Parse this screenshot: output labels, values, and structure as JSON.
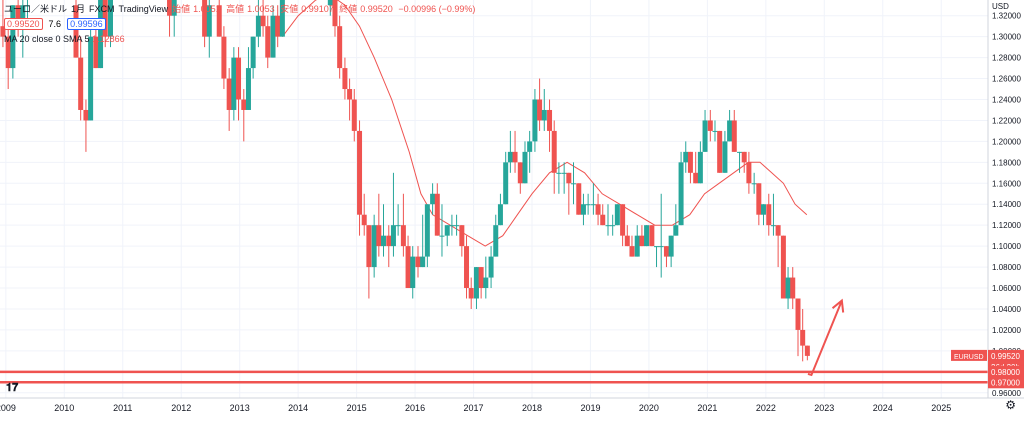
{
  "header": {
    "symbol": "ユーロ／米ドル",
    "interval": "1月",
    "exchange": "FXCM",
    "source": "TradingView",
    "open_label": "始値",
    "open": "1.0051",
    "high_label": "高値",
    "high": "1.0053",
    "low_label": "安値",
    "low": "0.99107",
    "close_label": "終値",
    "close": "0.99520",
    "change": "−0.00996 (−0.99%)",
    "bid": "0.99520",
    "spread": "7.6",
    "ask": "0.99596",
    "indicator": "MA 20 close 0 SMA 5",
    "indicator_value": "1.12866"
  },
  "axis": {
    "currency": "USD",
    "symbol_tag": "EURUSD",
    "price_tag": "0.99520",
    "countdown": "26d 20h",
    "hline_tag_1": "0.98000",
    "hline_tag_2": "0.97000"
  },
  "colors": {
    "up": "#26a69a",
    "down": "#ef5350",
    "ma": "#ef5350",
    "hline": "#ef5350",
    "arrow": "#ef5350",
    "grid": "#f0f3fa"
  },
  "chart_data": {
    "type": "candlestick",
    "ylim": [
      0.955,
      1.335
    ],
    "yticks": [
      0.96,
      0.98,
      1.0,
      1.02,
      1.04,
      1.06,
      1.08,
      1.1,
      1.12,
      1.14,
      1.16,
      1.18,
      1.2,
      1.22,
      1.24,
      1.26,
      1.28,
      1.3,
      1.32
    ],
    "xlim": [
      2008.9,
      2025.8
    ],
    "years": [
      2009,
      2010,
      2011,
      2012,
      2013,
      2014,
      2015,
      2016,
      2017,
      2018,
      2019,
      2020,
      2021,
      2022,
      2023,
      2024,
      2025
    ],
    "candles": [
      {
        "t": 2008.95,
        "o": 1.31,
        "h": 1.34,
        "l": 1.29,
        "c": 1.3
      },
      {
        "t": 2009.04,
        "o": 1.3,
        "h": 1.31,
        "l": 1.25,
        "c": 1.27
      },
      {
        "t": 2009.12,
        "o": 1.27,
        "h": 1.33,
        "l": 1.26,
        "c": 1.33
      },
      {
        "t": 2009.21,
        "o": 1.33,
        "h": 1.34,
        "l": 1.3,
        "c": 1.31
      },
      {
        "t": 2009.29,
        "o": 1.31,
        "h": 1.34,
        "l": 1.28,
        "c": 1.33
      },
      {
        "t": 2009.37,
        "o": 1.33,
        "h": 1.34,
        "l": 1.31,
        "c": 1.33
      },
      {
        "t": 2010.2,
        "o": 1.33,
        "h": 1.34,
        "l": 1.28,
        "c": 1.28
      },
      {
        "t": 2010.28,
        "o": 1.28,
        "h": 1.3,
        "l": 1.22,
        "c": 1.23
      },
      {
        "t": 2010.37,
        "o": 1.23,
        "h": 1.24,
        "l": 1.19,
        "c": 1.22
      },
      {
        "t": 2010.45,
        "o": 1.22,
        "h": 1.31,
        "l": 1.22,
        "c": 1.3
      },
      {
        "t": 2010.54,
        "o": 1.3,
        "h": 1.31,
        "l": 1.27,
        "c": 1.27
      },
      {
        "t": 2010.62,
        "o": 1.27,
        "h": 1.34,
        "l": 1.27,
        "c": 1.34
      },
      {
        "t": 2010.7,
        "o": 1.34,
        "h": 1.34,
        "l": 1.29,
        "c": 1.3
      },
      {
        "t": 2010.79,
        "o": 1.3,
        "h": 1.34,
        "l": 1.29,
        "c": 1.34
      },
      {
        "t": 2011.8,
        "o": 1.34,
        "h": 1.34,
        "l": 1.3,
        "c": 1.32
      },
      {
        "t": 2011.88,
        "o": 1.32,
        "h": 1.34,
        "l": 1.3,
        "c": 1.34
      },
      {
        "t": 2012.4,
        "o": 1.34,
        "h": 1.34,
        "l": 1.29,
        "c": 1.3
      },
      {
        "t": 2012.48,
        "o": 1.3,
        "h": 1.34,
        "l": 1.28,
        "c": 1.33
      },
      {
        "t": 2012.65,
        "o": 1.33,
        "h": 1.34,
        "l": 1.3,
        "c": 1.3
      },
      {
        "t": 2012.73,
        "o": 1.3,
        "h": 1.31,
        "l": 1.25,
        "c": 1.26
      },
      {
        "t": 2012.82,
        "o": 1.26,
        "h": 1.27,
        "l": 1.21,
        "c": 1.23
      },
      {
        "t": 2012.9,
        "o": 1.23,
        "h": 1.29,
        "l": 1.22,
        "c": 1.28
      },
      {
        "t": 2012.98,
        "o": 1.28,
        "h": 1.29,
        "l": 1.22,
        "c": 1.24
      },
      {
        "t": 2013.07,
        "o": 1.24,
        "h": 1.25,
        "l": 1.2,
        "c": 1.23
      },
      {
        "t": 2013.15,
        "o": 1.23,
        "h": 1.29,
        "l": 1.23,
        "c": 1.27
      },
      {
        "t": 2013.23,
        "o": 1.27,
        "h": 1.3,
        "l": 1.26,
        "c": 1.3
      },
      {
        "t": 2013.32,
        "o": 1.3,
        "h": 1.34,
        "l": 1.29,
        "c": 1.32
      },
      {
        "t": 2013.4,
        "o": 1.32,
        "h": 1.34,
        "l": 1.3,
        "c": 1.31
      },
      {
        "t": 2013.48,
        "o": 1.31,
        "h": 1.32,
        "l": 1.27,
        "c": 1.28
      },
      {
        "t": 2013.57,
        "o": 1.28,
        "h": 1.33,
        "l": 1.28,
        "c": 1.32
      },
      {
        "t": 2013.65,
        "o": 1.32,
        "h": 1.33,
        "l": 1.29,
        "c": 1.3
      },
      {
        "t": 2013.73,
        "o": 1.3,
        "h": 1.34,
        "l": 1.3,
        "c": 1.34
      },
      {
        "t": 2014.55,
        "o": 1.33,
        "h": 1.34,
        "l": 1.32,
        "c": 1.34
      },
      {
        "t": 2014.63,
        "o": 1.34,
        "h": 1.34,
        "l": 1.3,
        "c": 1.31
      },
      {
        "t": 2014.71,
        "o": 1.31,
        "h": 1.32,
        "l": 1.26,
        "c": 1.27
      },
      {
        "t": 2014.8,
        "o": 1.27,
        "h": 1.28,
        "l": 1.24,
        "c": 1.25
      },
      {
        "t": 2014.88,
        "o": 1.25,
        "h": 1.26,
        "l": 1.22,
        "c": 1.24
      },
      {
        "t": 2014.96,
        "o": 1.24,
        "h": 1.25,
        "l": 1.2,
        "c": 1.21
      },
      {
        "t": 2015.05,
        "o": 1.21,
        "h": 1.22,
        "l": 1.11,
        "c": 1.13
      },
      {
        "t": 2015.13,
        "o": 1.13,
        "h": 1.15,
        "l": 1.11,
        "c": 1.12
      },
      {
        "t": 2015.21,
        "o": 1.12,
        "h": 1.12,
        "l": 1.05,
        "c": 1.08
      },
      {
        "t": 2015.3,
        "o": 1.08,
        "h": 1.13,
        "l": 1.07,
        "c": 1.12
      },
      {
        "t": 2015.38,
        "o": 1.12,
        "h": 1.15,
        "l": 1.09,
        "c": 1.1
      },
      {
        "t": 2015.46,
        "o": 1.1,
        "h": 1.14,
        "l": 1.09,
        "c": 1.11
      },
      {
        "t": 2015.55,
        "o": 1.11,
        "h": 1.12,
        "l": 1.08,
        "c": 1.1
      },
      {
        "t": 2015.63,
        "o": 1.1,
        "h": 1.17,
        "l": 1.09,
        "c": 1.12
      },
      {
        "t": 2015.71,
        "o": 1.12,
        "h": 1.14,
        "l": 1.11,
        "c": 1.12
      },
      {
        "t": 2015.8,
        "o": 1.12,
        "h": 1.15,
        "l": 1.09,
        "c": 1.1
      },
      {
        "t": 2015.88,
        "o": 1.1,
        "h": 1.11,
        "l": 1.06,
        "c": 1.06
      },
      {
        "t": 2015.96,
        "o": 1.06,
        "h": 1.1,
        "l": 1.05,
        "c": 1.09
      },
      {
        "t": 2016.05,
        "o": 1.09,
        "h": 1.1,
        "l": 1.07,
        "c": 1.08
      },
      {
        "t": 2016.13,
        "o": 1.08,
        "h": 1.13,
        "l": 1.08,
        "c": 1.09
      },
      {
        "t": 2016.21,
        "o": 1.09,
        "h": 1.14,
        "l": 1.08,
        "c": 1.14
      },
      {
        "t": 2016.3,
        "o": 1.14,
        "h": 1.16,
        "l": 1.13,
        "c": 1.15
      },
      {
        "t": 2016.38,
        "o": 1.15,
        "h": 1.16,
        "l": 1.11,
        "c": 1.11
      },
      {
        "t": 2016.46,
        "o": 1.11,
        "h": 1.14,
        "l": 1.09,
        "c": 1.11
      },
      {
        "t": 2016.55,
        "o": 1.11,
        "h": 1.12,
        "l": 1.1,
        "c": 1.12
      },
      {
        "t": 2016.63,
        "o": 1.12,
        "h": 1.13,
        "l": 1.11,
        "c": 1.12
      },
      {
        "t": 2016.71,
        "o": 1.12,
        "h": 1.13,
        "l": 1.11,
        "c": 1.12
      },
      {
        "t": 2016.8,
        "o": 1.12,
        "h": 1.12,
        "l": 1.09,
        "c": 1.1
      },
      {
        "t": 2016.88,
        "o": 1.1,
        "h": 1.11,
        "l": 1.05,
        "c": 1.06
      },
      {
        "t": 2016.96,
        "o": 1.06,
        "h": 1.07,
        "l": 1.04,
        "c": 1.05
      },
      {
        "t": 2017.05,
        "o": 1.05,
        "h": 1.08,
        "l": 1.04,
        "c": 1.08
      },
      {
        "t": 2017.13,
        "o": 1.08,
        "h": 1.08,
        "l": 1.05,
        "c": 1.06
      },
      {
        "t": 2017.21,
        "o": 1.06,
        "h": 1.09,
        "l": 1.05,
        "c": 1.07
      },
      {
        "t": 2017.3,
        "o": 1.07,
        "h": 1.1,
        "l": 1.06,
        "c": 1.09
      },
      {
        "t": 2017.38,
        "o": 1.09,
        "h": 1.13,
        "l": 1.09,
        "c": 1.12
      },
      {
        "t": 2017.46,
        "o": 1.12,
        "h": 1.15,
        "l": 1.12,
        "c": 1.14
      },
      {
        "t": 2017.55,
        "o": 1.14,
        "h": 1.19,
        "l": 1.14,
        "c": 1.18
      },
      {
        "t": 2017.63,
        "o": 1.18,
        "h": 1.21,
        "l": 1.17,
        "c": 1.19
      },
      {
        "t": 2017.71,
        "o": 1.19,
        "h": 1.21,
        "l": 1.17,
        "c": 1.18
      },
      {
        "t": 2017.8,
        "o": 1.18,
        "h": 1.18,
        "l": 1.15,
        "c": 1.16
      },
      {
        "t": 2017.88,
        "o": 1.16,
        "h": 1.2,
        "l": 1.16,
        "c": 1.19
      },
      {
        "t": 2017.96,
        "o": 1.19,
        "h": 1.21,
        "l": 1.17,
        "c": 1.2
      },
      {
        "t": 2018.05,
        "o": 1.2,
        "h": 1.25,
        "l": 1.19,
        "c": 1.24
      },
      {
        "t": 2018.13,
        "o": 1.24,
        "h": 1.26,
        "l": 1.21,
        "c": 1.22
      },
      {
        "t": 2018.21,
        "o": 1.22,
        "h": 1.25,
        "l": 1.21,
        "c": 1.23
      },
      {
        "t": 2018.3,
        "o": 1.23,
        "h": 1.24,
        "l": 1.19,
        "c": 1.21
      },
      {
        "t": 2018.38,
        "o": 1.21,
        "h": 1.22,
        "l": 1.15,
        "c": 1.17
      },
      {
        "t": 2018.46,
        "o": 1.17,
        "h": 1.18,
        "l": 1.15,
        "c": 1.17
      },
      {
        "t": 2018.55,
        "o": 1.17,
        "h": 1.18,
        "l": 1.15,
        "c": 1.17
      },
      {
        "t": 2018.63,
        "o": 1.17,
        "h": 1.17,
        "l": 1.13,
        "c": 1.16
      },
      {
        "t": 2018.71,
        "o": 1.16,
        "h": 1.18,
        "l": 1.14,
        "c": 1.16
      },
      {
        "t": 2018.8,
        "o": 1.16,
        "h": 1.16,
        "l": 1.13,
        "c": 1.13
      },
      {
        "t": 2018.88,
        "o": 1.13,
        "h": 1.15,
        "l": 1.12,
        "c": 1.14
      },
      {
        "t": 2018.96,
        "o": 1.14,
        "h": 1.15,
        "l": 1.13,
        "c": 1.14
      },
      {
        "t": 2019.05,
        "o": 1.14,
        "h": 1.16,
        "l": 1.13,
        "c": 1.14
      },
      {
        "t": 2019.13,
        "o": 1.14,
        "h": 1.15,
        "l": 1.12,
        "c": 1.13
      },
      {
        "t": 2019.21,
        "o": 1.13,
        "h": 1.14,
        "l": 1.12,
        "c": 1.12
      },
      {
        "t": 2019.3,
        "o": 1.12,
        "h": 1.14,
        "l": 1.11,
        "c": 1.12
      },
      {
        "t": 2019.38,
        "o": 1.12,
        "h": 1.13,
        "l": 1.11,
        "c": 1.12
      },
      {
        "t": 2019.46,
        "o": 1.12,
        "h": 1.14,
        "l": 1.12,
        "c": 1.14
      },
      {
        "t": 2019.55,
        "o": 1.14,
        "h": 1.14,
        "l": 1.1,
        "c": 1.11
      },
      {
        "t": 2019.63,
        "o": 1.11,
        "h": 1.12,
        "l": 1.1,
        "c": 1.1
      },
      {
        "t": 2019.71,
        "o": 1.1,
        "h": 1.11,
        "l": 1.09,
        "c": 1.09
      },
      {
        "t": 2019.8,
        "o": 1.09,
        "h": 1.12,
        "l": 1.09,
        "c": 1.11
      },
      {
        "t": 2019.88,
        "o": 1.11,
        "h": 1.12,
        "l": 1.1,
        "c": 1.1
      },
      {
        "t": 2019.96,
        "o": 1.1,
        "h": 1.12,
        "l": 1.1,
        "c": 1.12
      },
      {
        "t": 2020.05,
        "o": 1.12,
        "h": 1.12,
        "l": 1.1,
        "c": 1.1
      },
      {
        "t": 2020.13,
        "o": 1.1,
        "h": 1.1,
        "l": 1.08,
        "c": 1.1
      },
      {
        "t": 2020.21,
        "o": 1.1,
        "h": 1.15,
        "l": 1.07,
        "c": 1.1
      },
      {
        "t": 2020.3,
        "o": 1.1,
        "h": 1.1,
        "l": 1.08,
        "c": 1.09
      },
      {
        "t": 2020.38,
        "o": 1.09,
        "h": 1.11,
        "l": 1.08,
        "c": 1.11
      },
      {
        "t": 2020.46,
        "o": 1.11,
        "h": 1.14,
        "l": 1.11,
        "c": 1.12
      },
      {
        "t": 2020.55,
        "o": 1.12,
        "h": 1.19,
        "l": 1.12,
        "c": 1.18
      },
      {
        "t": 2020.63,
        "o": 1.18,
        "h": 1.2,
        "l": 1.17,
        "c": 1.19
      },
      {
        "t": 2020.71,
        "o": 1.19,
        "h": 1.19,
        "l": 1.16,
        "c": 1.17
      },
      {
        "t": 2020.8,
        "o": 1.17,
        "h": 1.19,
        "l": 1.16,
        "c": 1.16
      },
      {
        "t": 2020.88,
        "o": 1.16,
        "h": 1.2,
        "l": 1.16,
        "c": 1.19
      },
      {
        "t": 2020.96,
        "o": 1.19,
        "h": 1.23,
        "l": 1.19,
        "c": 1.22
      },
      {
        "t": 2021.05,
        "o": 1.22,
        "h": 1.23,
        "l": 1.2,
        "c": 1.21
      },
      {
        "t": 2021.13,
        "o": 1.21,
        "h": 1.22,
        "l": 1.2,
        "c": 1.21
      },
      {
        "t": 2021.21,
        "o": 1.21,
        "h": 1.21,
        "l": 1.17,
        "c": 1.17
      },
      {
        "t": 2021.3,
        "o": 1.17,
        "h": 1.21,
        "l": 1.17,
        "c": 1.2
      },
      {
        "t": 2021.38,
        "o": 1.2,
        "h": 1.23,
        "l": 1.2,
        "c": 1.22
      },
      {
        "t": 2021.46,
        "o": 1.22,
        "h": 1.23,
        "l": 1.19,
        "c": 1.19
      },
      {
        "t": 2021.55,
        "o": 1.19,
        "h": 1.19,
        "l": 1.17,
        "c": 1.19
      },
      {
        "t": 2021.63,
        "o": 1.19,
        "h": 1.19,
        "l": 1.17,
        "c": 1.18
      },
      {
        "t": 2021.71,
        "o": 1.18,
        "h": 1.19,
        "l": 1.15,
        "c": 1.16
      },
      {
        "t": 2021.8,
        "o": 1.16,
        "h": 1.17,
        "l": 1.15,
        "c": 1.16
      },
      {
        "t": 2021.88,
        "o": 1.16,
        "h": 1.16,
        "l": 1.12,
        "c": 1.13
      },
      {
        "t": 2021.96,
        "o": 1.13,
        "h": 1.14,
        "l": 1.12,
        "c": 1.14
      },
      {
        "t": 2022.05,
        "o": 1.14,
        "h": 1.15,
        "l": 1.11,
        "c": 1.12
      },
      {
        "t": 2022.13,
        "o": 1.12,
        "h": 1.15,
        "l": 1.11,
        "c": 1.12
      },
      {
        "t": 2022.21,
        "o": 1.12,
        "h": 1.12,
        "l": 1.08,
        "c": 1.11
      },
      {
        "t": 2022.3,
        "o": 1.11,
        "h": 1.11,
        "l": 1.05,
        "c": 1.05
      },
      {
        "t": 2022.38,
        "o": 1.05,
        "h": 1.08,
        "l": 1.04,
        "c": 1.07
      },
      {
        "t": 2022.46,
        "o": 1.07,
        "h": 1.08,
        "l": 1.04,
        "c": 1.05
      },
      {
        "t": 2022.55,
        "o": 1.05,
        "h": 1.05,
        "l": 0.995,
        "c": 1.02
      },
      {
        "t": 2022.63,
        "o": 1.02,
        "h": 1.04,
        "l": 0.99,
        "c": 1.005
      },
      {
        "t": 2022.71,
        "o": 1.005,
        "h": 1.005,
        "l": 0.991,
        "c": 0.9952
      }
    ],
    "ma": [
      [
        2013.73,
        1.3
      ],
      [
        2014.0,
        1.32
      ],
      [
        2014.3,
        1.335
      ],
      [
        2014.55,
        1.34
      ],
      [
        2014.8,
        1.33
      ],
      [
        2015.05,
        1.31
      ],
      [
        2015.3,
        1.28
      ],
      [
        2015.6,
        1.24
      ],
      [
        2015.9,
        1.19
      ],
      [
        2016.1,
        1.15
      ],
      [
        2016.3,
        1.13
      ],
      [
        2016.6,
        1.12
      ],
      [
        2016.9,
        1.11
      ],
      [
        2017.2,
        1.1
      ],
      [
        2017.5,
        1.11
      ],
      [
        2017.75,
        1.13
      ],
      [
        2018.0,
        1.15
      ],
      [
        2018.3,
        1.17
      ],
      [
        2018.6,
        1.18
      ],
      [
        2018.9,
        1.17
      ],
      [
        2019.2,
        1.15
      ],
      [
        2019.5,
        1.14
      ],
      [
        2019.8,
        1.13
      ],
      [
        2020.1,
        1.12
      ],
      [
        2020.4,
        1.12
      ],
      [
        2020.7,
        1.13
      ],
      [
        2020.95,
        1.15
      ],
      [
        2021.2,
        1.16
      ],
      [
        2021.45,
        1.17
      ],
      [
        2021.7,
        1.18
      ],
      [
        2021.9,
        1.18
      ],
      [
        2022.1,
        1.17
      ],
      [
        2022.3,
        1.16
      ],
      [
        2022.5,
        1.14
      ],
      [
        2022.7,
        1.13
      ]
    ],
    "hlines": [
      0.98,
      0.97
    ],
    "arrow": [
      [
        2022.72,
        0.978
      ],
      [
        2022.78,
        0.977
      ],
      [
        2023.3,
        1.048
      ]
    ]
  }
}
